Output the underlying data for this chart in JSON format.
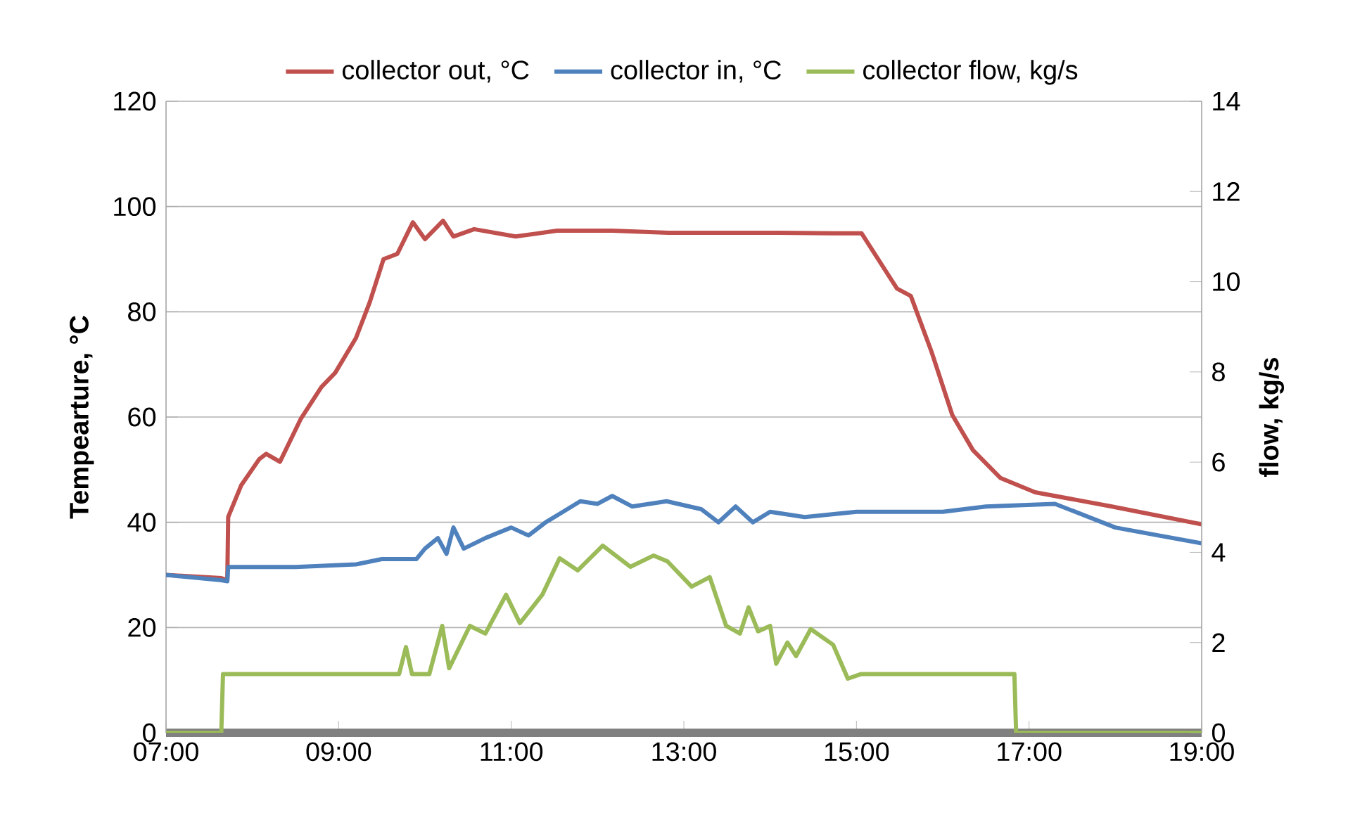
{
  "chart_data": {
    "type": "line",
    "x": [
      7.0,
      7.64,
      7.71,
      7.72,
      7.87,
      8.08,
      8.16,
      8.32,
      8.56,
      8.8,
      8.96,
      9.2,
      9.36,
      9.52,
      9.68,
      9.86,
      10.0,
      10.21,
      10.33,
      10.57,
      11.05,
      11.53,
      12.17,
      12.82,
      13.46,
      14.1,
      14.74,
      15.06,
      15.47,
      15.63,
      15.87,
      16.11,
      16.35,
      16.67,
      17.07,
      17.96,
      19.0
    ],
    "series": [
      {
        "name": "collector out, °C",
        "color": "#c0504d",
        "values": [
          30,
          29.4,
          29,
          41,
          47,
          52,
          53,
          51.5,
          59.6,
          65.7,
          68.4,
          75,
          81.8,
          90,
          91,
          97,
          93.8,
          97.3,
          94.3,
          95.7,
          94.3,
          95.4,
          95.4,
          95,
          95,
          95,
          94.9,
          94.9,
          84.4,
          83,
          72.4,
          60.4,
          53.7,
          48.4,
          45.7,
          43,
          39.6
        ]
      },
      {
        "name": "collector in, °C",
        "color": "#4f81bd",
        "x": [
          7.0,
          7.64,
          7.71,
          7.72,
          8.5,
          9.2,
          9.5,
          9.9,
          10.0,
          10.15,
          10.25,
          10.33,
          10.45,
          10.7,
          11.0,
          11.2,
          11.4,
          11.6,
          11.8,
          12.0,
          12.17,
          12.4,
          12.8,
          13.2,
          13.4,
          13.6,
          13.8,
          14.0,
          14.4,
          15.0,
          16.0,
          16.5,
          17.3,
          18.0,
          19.0
        ],
        "values": [
          30,
          29,
          28.8,
          31.5,
          31.5,
          32,
          33,
          33,
          35,
          37,
          34,
          39,
          35,
          37,
          39,
          37.5,
          40,
          42,
          44,
          43.5,
          45,
          43,
          44,
          42.5,
          40,
          43,
          40,
          42,
          41,
          42,
          42,
          43,
          43.5,
          39,
          36
        ]
      },
      {
        "name": "collector flow, kg/s",
        "color": "#9bbb59",
        "axis": "y2",
        "x": [
          7.0,
          7.64,
          7.66,
          9.7,
          9.78,
          9.85,
          10.05,
          10.2,
          10.28,
          10.52,
          10.7,
          10.94,
          11.1,
          11.36,
          11.56,
          11.77,
          12.06,
          12.38,
          12.65,
          12.81,
          13.09,
          13.3,
          13.49,
          13.65,
          13.75,
          13.86,
          14.0,
          14.07,
          14.2,
          14.3,
          14.47,
          14.73,
          14.9,
          15.05,
          16.83,
          16.85,
          19.0
        ],
        "values": [
          0,
          0,
          1.3,
          1.3,
          1.9,
          1.3,
          1.3,
          2.37,
          1.43,
          2.37,
          2.2,
          3.06,
          2.43,
          3.06,
          3.87,
          3.6,
          4.15,
          3.68,
          3.93,
          3.8,
          3.24,
          3.45,
          2.37,
          2.2,
          2.78,
          2.25,
          2.37,
          1.53,
          2.0,
          1.7,
          2.3,
          1.95,
          1.2,
          1.3,
          1.3,
          0,
          0
        ]
      }
    ],
    "ylabel": "Tempearture, °C",
    "y2label": "flow, kg/s",
    "xlim": [
      7,
      19
    ],
    "xticks": [
      {
        "value": 7,
        "label": "07:00"
      },
      {
        "value": 9,
        "label": "09:00"
      },
      {
        "value": 11,
        "label": "11:00"
      },
      {
        "value": 13,
        "label": "13:00"
      },
      {
        "value": 15,
        "label": "15:00"
      },
      {
        "value": 17,
        "label": "17:00"
      },
      {
        "value": 19,
        "label": "19:00"
      }
    ],
    "ylim": [
      0,
      120
    ],
    "yticks": [
      0,
      20,
      40,
      60,
      80,
      100,
      120
    ],
    "y2lim": [
      0,
      14
    ],
    "y2ticks": [
      0,
      2,
      4,
      6,
      8,
      10,
      12,
      14
    ],
    "grid": "y",
    "legend": "top",
    "marker": "none",
    "line_style": "solid"
  }
}
